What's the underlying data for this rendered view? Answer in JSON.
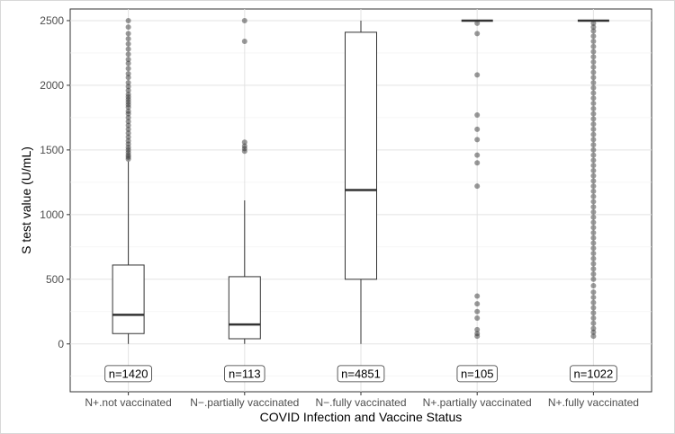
{
  "chart_data": {
    "type": "boxplot",
    "xlabel": "COVID Infection and Vaccine Status",
    "ylabel": "S test value (U/mL)",
    "ylim": [
      -370,
      2590
    ],
    "yticks": [
      0,
      500,
      1000,
      1500,
      2000,
      2500
    ],
    "grid": true,
    "legend": "none",
    "categories": [
      "N+.not vaccinated",
      "N−.partially vaccinated",
      "N−.fully vaccinated",
      "N+.partially vaccinated",
      "N+.fully vaccinated"
    ],
    "count_label_y": -230,
    "boxes": [
      {
        "category": "N+.not vaccinated",
        "n_label": "n=1420",
        "whisker_low": 0,
        "q1": 80,
        "median": 225,
        "q3": 610,
        "whisker_high": 1410,
        "outliers": [
          1430,
          1445,
          1460,
          1480,
          1500,
          1520,
          1545,
          1570,
          1600,
          1630,
          1660,
          1690,
          1720,
          1750,
          1780,
          1800,
          1830,
          1850,
          1870,
          1890,
          1910,
          1930,
          1960,
          1990,
          2020,
          2060,
          2090,
          2130,
          2170,
          2200,
          2240,
          2280,
          2320,
          2360,
          2400,
          2450,
          2500
        ]
      },
      {
        "category": "N−.partially vaccinated",
        "n_label": "n=113",
        "whisker_low": 0,
        "q1": 40,
        "median": 150,
        "q3": 520,
        "whisker_high": 1110,
        "outliers": [
          1490,
          1510,
          1530,
          1560,
          2340,
          2500
        ]
      },
      {
        "category": "N−.fully vaccinated",
        "n_label": "n=4851",
        "whisker_low": 0,
        "q1": 500,
        "median": 1190,
        "q3": 2410,
        "whisker_high": 2500,
        "outliers": []
      },
      {
        "category": "N+.partially vaccinated",
        "n_label": "n=105",
        "whisker_low": 2500,
        "q1": 2500,
        "median": 2500,
        "q3": 2500,
        "whisker_high": 2500,
        "outliers": [
          60,
          80,
          110,
          200,
          250,
          310,
          370,
          1220,
          1400,
          1460,
          1580,
          1660,
          1770,
          2080,
          2400,
          2480
        ]
      },
      {
        "category": "N+.fully vaccinated",
        "n_label": "n=1022",
        "whisker_low": 2500,
        "q1": 2500,
        "median": 2500,
        "q3": 2500,
        "whisker_high": 2500,
        "outliers": [
          60,
          90,
          120,
          160,
          200,
          240,
          280,
          320,
          360,
          400,
          450,
          500,
          540,
          580,
          620,
          660,
          700,
          740,
          780,
          820,
          860,
          900,
          940,
          980,
          1020,
          1060,
          1100,
          1140,
          1180,
          1220,
          1260,
          1300,
          1340,
          1380,
          1420,
          1460,
          1500,
          1540,
          1580,
          1620,
          1660,
          1700,
          1740,
          1780,
          1820,
          1860,
          1900,
          1940,
          1980,
          2020,
          2060,
          2100,
          2140,
          2180,
          2220,
          2260,
          2300,
          2340,
          2380,
          2420,
          2450,
          2480
        ]
      }
    ]
  }
}
